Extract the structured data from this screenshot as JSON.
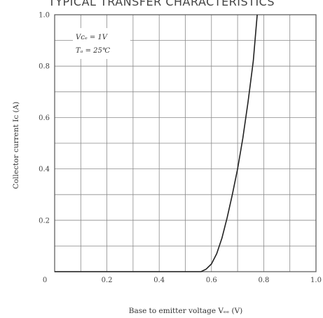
{
  "chart_data": {
    "type": "line",
    "title": "TYPICAL TRANSFER CHARACTERISTICS",
    "xlabel": "Base to emitter voltage  Vₑₑ (V)",
    "ylabel": "Collector current  Iᴄ (A)",
    "xlim": [
      0,
      1.0
    ],
    "ylim": [
      0,
      1.0
    ],
    "xticks": [
      "0",
      "0.2",
      "0.4",
      "0.6",
      "0.8",
      "1.0"
    ],
    "yticks": [
      "1.0",
      "0.8",
      "0.6",
      "0.4",
      "0.2"
    ],
    "grid": true,
    "annotations": [
      "Vᴄₑ = 1V",
      "Tₐ = 25℃"
    ],
    "series": [
      {
        "x": [
          0,
          0.1,
          0.2,
          0.3,
          0.4,
          0.5,
          0.56,
          0.58,
          0.6,
          0.62,
          0.64,
          0.66,
          0.68,
          0.7,
          0.72,
          0.74,
          0.76,
          0.775
        ],
        "y": [
          0,
          0,
          0,
          0,
          0,
          0,
          0,
          0.01,
          0.03,
          0.07,
          0.13,
          0.21,
          0.3,
          0.4,
          0.52,
          0.66,
          0.82,
          1.0
        ]
      }
    ]
  },
  "colors": {
    "grid": "#8a8a8a",
    "curve": "#222222",
    "frame": "#555555"
  }
}
